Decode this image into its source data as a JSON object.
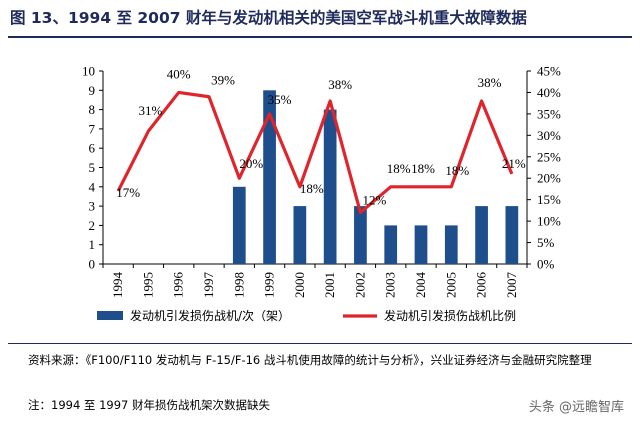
{
  "title": "图 13、1994 至 2007 财年与发动机相关的美国空军战斗机重大故障数据",
  "chart_data": {
    "type": "bar+line",
    "title": "图 13、1994 至 2007 财年与发动机相关的美国空军战斗机重大故障数据",
    "categories": [
      "1994",
      "1995",
      "1996",
      "1997",
      "1998",
      "1999",
      "2000",
      "2001",
      "2002",
      "2003",
      "2004",
      "2005",
      "2006",
      "2007"
    ],
    "series": [
      {
        "name": "发动机引发损伤战机/次（架）",
        "type": "bar",
        "axis": "left",
        "color": "#1f4e8c",
        "values": [
          null,
          null,
          null,
          null,
          4,
          9,
          3,
          8,
          3,
          2,
          2,
          2,
          3,
          3
        ]
      },
      {
        "name": "发动机引发损伤战机比例",
        "type": "line",
        "axis": "right",
        "color": "#e0242b",
        "values": [
          17,
          31,
          40,
          39,
          20,
          35,
          18,
          38,
          12,
          18,
          18,
          18,
          38,
          21
        ],
        "labels": [
          "17%",
          "31%",
          "40%",
          "39%",
          "20%",
          "35%",
          "18%",
          "38%",
          "12%",
          "18%",
          "18%",
          "18%",
          "38%",
          "21%"
        ]
      }
    ],
    "y_left": {
      "min": 0,
      "max": 10,
      "ticks": [
        "0",
        "1",
        "2",
        "3",
        "4",
        "5",
        "6",
        "7",
        "8",
        "9",
        "10"
      ]
    },
    "y_right": {
      "min": 0,
      "max": 45,
      "ticks": [
        "0%",
        "5%",
        "10%",
        "15%",
        "20%",
        "25%",
        "30%",
        "35%",
        "40%",
        "45%"
      ]
    },
    "legend": "bottom"
  },
  "source": "资料来源：《F100/F110 发动机与 F-15/F-16 战斗机使用故障的统计与分析》，兴业证券经济与金融研究院整理",
  "note": "注：1994 至 1997 财年损伤战机架次数据缺失",
  "watermark": "头条 @远瞻智库"
}
